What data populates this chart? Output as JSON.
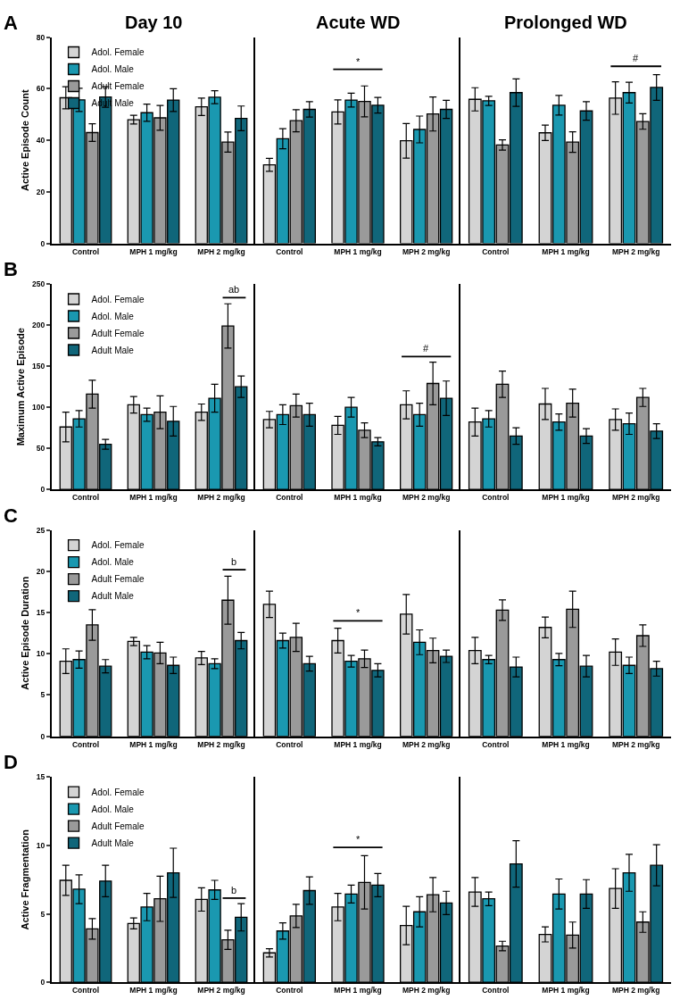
{
  "chart_data": [
    {
      "type": "bar",
      "title": "Day 10",
      "ylabel": "Active Episode Count",
      "categories": [
        "Control",
        "MPH 1 mg/kg",
        "MPH 2 mg/kg"
      ],
      "ylim": [
        0,
        80
      ],
      "yticks": [
        0,
        20,
        40,
        60,
        80
      ],
      "legend": "top left",
      "annotations": [
        "A"
      ],
      "series": [
        {
          "name": "Adol. Female",
          "color": "#d4d4d4",
          "values": [
            56.5,
            48,
            53
          ],
          "errors": [
            4.3,
            1.7,
            3.4
          ]
        },
        {
          "name": "Adol. Male",
          "color": "#1a98b0",
          "values": [
            55.7,
            50.7,
            56.7
          ],
          "errors": [
            4.5,
            3.3,
            2.5
          ]
        },
        {
          "name": "Adult Female",
          "color": "#9a9a9a",
          "values": [
            43,
            48.7,
            39.3
          ],
          "errors": [
            3.4,
            4.8,
            3.9
          ]
        },
        {
          "name": "Adult Male",
          "color": "#10667a",
          "values": [
            56.8,
            55.6,
            48.5
          ],
          "errors": [
            4,
            4.4,
            4.8
          ]
        }
      ]
    },
    {
      "type": "bar",
      "title": "Acute WD",
      "categories": [
        "Control",
        "MPH 1 mg/kg",
        "MPH 2 mg/kg"
      ],
      "ylim": [
        0,
        80
      ],
      "tick_labels": "x",
      "annotations": [
        "*"
      ],
      "series": [
        {
          "color": "#d4d4d4",
          "values": [
            30.5,
            51,
            39.8
          ],
          "errors": [
            2.5,
            4.7,
            6.7
          ]
        },
        {
          "color": "#1a98b0",
          "values": [
            40.6,
            55.6,
            44.2
          ],
          "errors": [
            3.9,
            2.7,
            5.2
          ]
        },
        {
          "color": "#9a9a9a",
          "values": [
            47.6,
            55.1,
            50.2
          ],
          "errors": [
            4.3,
            6,
            6.6
          ]
        },
        {
          "color": "#10667a",
          "values": [
            52,
            53.6,
            52
          ],
          "errors": [
            3,
            3,
            3.5
          ]
        }
      ]
    },
    {
      "type": "bar",
      "title": "Prolonged WD",
      "categories": [
        "Control",
        "MPH 1 mg/kg",
        "MPH 2 mg/kg"
      ],
      "ylim": [
        0,
        80
      ],
      "tick_labels": "x",
      "annotations": [
        "#"
      ],
      "series": [
        {
          "color": "#d4d4d4",
          "values": [
            55.9,
            42.9,
            56.4
          ],
          "errors": [
            4.5,
            3,
            6.3
          ]
        },
        {
          "color": "#1a98b0",
          "values": [
            55.3,
            53.6,
            58.5
          ],
          "errors": [
            1.8,
            3.8,
            4
          ]
        },
        {
          "color": "#9a9a9a",
          "values": [
            38.2,
            39.3,
            47.3
          ],
          "errors": [
            2,
            4,
            3
          ]
        },
        {
          "color": "#10667a",
          "values": [
            58.5,
            51.4,
            60.5
          ],
          "errors": [
            5.3,
            3.6,
            5
          ]
        }
      ]
    },
    {
      "type": "bar",
      "ylabel": "Maximum Active Episode",
      "categories": [
        "Control",
        "MPH 1 mg/kg",
        "MPH 2 mg/kg"
      ],
      "ylim": [
        0,
        250
      ],
      "yticks": [
        0,
        50,
        100,
        150,
        200,
        250
      ],
      "legend": "top left",
      "annotations": [
        "B",
        "ab"
      ],
      "series": [
        {
          "name": "Adol. Female",
          "color": "#d4d4d4",
          "values": [
            76,
            103,
            94
          ],
          "errors": [
            18,
            10,
            10
          ]
        },
        {
          "name": "Adol. Male",
          "color": "#1a98b0",
          "values": [
            86,
            91,
            111
          ],
          "errors": [
            10,
            8,
            17
          ]
        },
        {
          "name": "Adult Female",
          "color": "#9a9a9a",
          "values": [
            116,
            94,
            199
          ],
          "errors": [
            17,
            20,
            27
          ]
        },
        {
          "name": "Adult Male",
          "color": "#10667a",
          "values": [
            55,
            83,
            125
          ],
          "errors": [
            6,
            18,
            13
          ]
        }
      ]
    },
    {
      "type": "bar",
      "categories": [
        "Control",
        "MPH 1 mg/kg",
        "MPH 2 mg/kg"
      ],
      "ylim": [
        0,
        250
      ],
      "tick_labels": "x",
      "annotations": [
        "#"
      ],
      "series": [
        {
          "color": "#d4d4d4",
          "values": [
            85,
            78,
            103
          ],
          "errors": [
            10,
            11,
            17
          ]
        },
        {
          "color": "#1a98b0",
          "values": [
            91,
            100,
            91
          ],
          "errors": [
            12,
            12,
            14
          ]
        },
        {
          "color": "#9a9a9a",
          "values": [
            102,
            72,
            129
          ],
          "errors": [
            14,
            9,
            26
          ]
        },
        {
          "color": "#10667a",
          "values": [
            91,
            58,
            111
          ],
          "errors": [
            14,
            5,
            21
          ]
        }
      ]
    },
    {
      "type": "bar",
      "categories": [
        "Control",
        "MPH 1 mg/kg",
        "MPH 2 mg/kg"
      ],
      "ylim": [
        0,
        250
      ],
      "tick_labels": "x",
      "series": [
        {
          "color": "#d4d4d4",
          "values": [
            82,
            104,
            85
          ],
          "errors": [
            17,
            19,
            13
          ]
        },
        {
          "color": "#1a98b0",
          "values": [
            86,
            82,
            80
          ],
          "errors": [
            10,
            10,
            13
          ]
        },
        {
          "color": "#9a9a9a",
          "values": [
            128,
            105,
            112
          ],
          "errors": [
            16,
            17,
            11
          ]
        },
        {
          "color": "#10667a",
          "values": [
            65,
            65,
            71
          ],
          "errors": [
            10,
            9,
            9
          ]
        }
      ]
    },
    {
      "type": "bar",
      "ylabel": "Active Episode Duration",
      "categories": [
        "Control",
        "MPH 1 mg/kg",
        "MPH 2 mg/kg"
      ],
      "ylim": [
        0,
        25
      ],
      "yticks": [
        0,
        5,
        10,
        15,
        20,
        25
      ],
      "legend": "top left",
      "annotations": [
        "C",
        "b"
      ],
      "series": [
        {
          "name": "Adol. Female",
          "color": "#d4d4d4",
          "values": [
            9.1,
            11.5,
            9.5
          ],
          "errors": [
            1.5,
            0.5,
            0.8
          ]
        },
        {
          "name": "Adol. Male",
          "color": "#1a98b0",
          "values": [
            9.3,
            10.2,
            8.8
          ],
          "errors": [
            1.05,
            0.8,
            0.6
          ]
        },
        {
          "name": "Adult Female",
          "color": "#9a9a9a",
          "values": [
            13.5,
            10.1,
            16.5
          ],
          "errors": [
            1.85,
            1.3,
            2.9
          ]
        },
        {
          "name": "Adult Male",
          "color": "#10667a",
          "values": [
            8.5,
            8.6,
            11.6
          ],
          "errors": [
            0.8,
            1,
            1
          ]
        }
      ]
    },
    {
      "type": "bar",
      "categories": [
        "Control",
        "MPH 1 mg/kg",
        "MPH 2 mg/kg"
      ],
      "ylim": [
        0,
        25
      ],
      "tick_labels": "x",
      "annotations": [
        "*"
      ],
      "series": [
        {
          "color": "#d4d4d4",
          "values": [
            16,
            11.6,
            14.8
          ],
          "errors": [
            1.6,
            1.5,
            2.4
          ]
        },
        {
          "color": "#1a98b0",
          "values": [
            11.6,
            9.1,
            11.4
          ],
          "errors": [
            0.9,
            0.7,
            1.5
          ]
        },
        {
          "color": "#9a9a9a",
          "values": [
            12,
            9.4,
            10.4
          ],
          "errors": [
            1.7,
            1.05,
            1.5
          ]
        },
        {
          "color": "#10667a",
          "values": [
            8.8,
            8,
            9.7
          ],
          "errors": [
            0.9,
            0.8,
            0.75
          ]
        }
      ]
    },
    {
      "type": "bar",
      "categories": [
        "Control",
        "MPH 1 mg/kg",
        "MPH 2 mg/kg"
      ],
      "ylim": [
        0,
        25
      ],
      "tick_labels": "x",
      "series": [
        {
          "color": "#d4d4d4",
          "values": [
            10.4,
            13.2,
            10.2
          ],
          "errors": [
            1.6,
            1.25,
            1.6
          ]
        },
        {
          "color": "#1a98b0",
          "values": [
            9.3,
            9.3,
            8.6
          ],
          "errors": [
            0.5,
            0.75,
            1
          ]
        },
        {
          "color": "#9a9a9a",
          "values": [
            15.3,
            15.4,
            12.2
          ],
          "errors": [
            1.25,
            2.2,
            1.3
          ]
        },
        {
          "color": "#10667a",
          "values": [
            8.4,
            8.5,
            8.2
          ],
          "errors": [
            1.2,
            1.3,
            0.9
          ]
        }
      ]
    },
    {
      "type": "bar",
      "ylabel": "Active Fragmentation",
      "categories": [
        "Control",
        "MPH 1 mg/kg",
        "MPH 2 mg/kg"
      ],
      "ylim": [
        0,
        15
      ],
      "yticks": [
        0,
        5,
        10,
        15
      ],
      "legend": "top left",
      "annotations": [
        "D",
        "b"
      ],
      "series": [
        {
          "name": "Adol. Female",
          "color": "#d4d4d4",
          "values": [
            7.45,
            4.3,
            6.05
          ],
          "errors": [
            1.1,
            0.4,
            0.85
          ]
        },
        {
          "name": "Adol. Male",
          "color": "#1a98b0",
          "values": [
            6.8,
            5.5,
            6.75
          ],
          "errors": [
            1.05,
            1,
            0.7
          ]
        },
        {
          "name": "Adult Female",
          "color": "#9a9a9a",
          "values": [
            3.9,
            6.1,
            3.1
          ],
          "errors": [
            0.75,
            1.65,
            0.7
          ]
        },
        {
          "name": "Adult Male",
          "color": "#10667a",
          "values": [
            7.4,
            8,
            4.75
          ],
          "errors": [
            1.15,
            1.8,
            1
          ]
        }
      ]
    },
    {
      "type": "bar",
      "categories": [
        "Control",
        "MPH 1 mg/kg",
        "MPH 2 mg/kg"
      ],
      "ylim": [
        0,
        15
      ],
      "tick_labels": "x",
      "annotations": [
        "*"
      ],
      "series": [
        {
          "color": "#d4d4d4",
          "values": [
            2.15,
            5.5,
            4.15
          ],
          "errors": [
            0.3,
            1,
            1.4
          ]
        },
        {
          "color": "#1a98b0",
          "values": [
            3.75,
            6.45,
            5.15
          ],
          "errors": [
            0.6,
            0.65,
            1.1
          ]
        },
        {
          "color": "#9a9a9a",
          "values": [
            4.85,
            7.3,
            6.4
          ],
          "errors": [
            0.85,
            1.95,
            1.25
          ]
        },
        {
          "color": "#10667a",
          "values": [
            6.7,
            7.1,
            5.8
          ],
          "errors": [
            1,
            0.85,
            0.85
          ]
        }
      ]
    },
    {
      "type": "bar",
      "categories": [
        "Control",
        "MPH 1 mg/kg",
        "MPH 2 mg/kg"
      ],
      "ylim": [
        0,
        15
      ],
      "tick_labels": "x",
      "series": [
        {
          "color": "#d4d4d4",
          "values": [
            6.6,
            3.5,
            6.85
          ],
          "errors": [
            1.05,
            0.55,
            1.45
          ]
        },
        {
          "color": "#1a98b0",
          "values": [
            6.1,
            6.45,
            8
          ],
          "errors": [
            0.5,
            1.1,
            1.35
          ]
        },
        {
          "color": "#9a9a9a",
          "values": [
            2.65,
            3.45,
            4.4
          ],
          "errors": [
            0.35,
            0.95,
            0.75
          ]
        },
        {
          "color": "#10667a",
          "values": [
            8.65,
            6.45,
            8.55
          ],
          "errors": [
            1.7,
            1.05,
            1.5
          ]
        }
      ]
    }
  ]
}
